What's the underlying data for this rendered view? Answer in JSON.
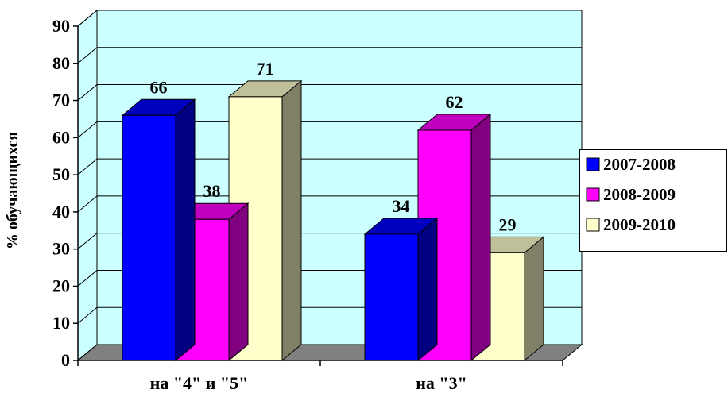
{
  "chart_data": {
    "type": "bar",
    "style": "3d-clustered-column",
    "title": "",
    "xlabel": "",
    "ylabel": "% обучающихся",
    "ylim": [
      0,
      90
    ],
    "y_ticks": [
      0,
      10,
      20,
      30,
      40,
      50,
      60,
      70,
      80,
      90
    ],
    "grid": true,
    "legend_position": "right",
    "categories": [
      "на \"4\" и \"5\"",
      "на \"3\""
    ],
    "series": [
      {
        "name": "2007-2008",
        "values": [
          66,
          34
        ],
        "color": "#0000ff"
      },
      {
        "name": "2008-2009",
        "values": [
          38,
          62
        ],
        "color": "#ff00ff"
      },
      {
        "name": "2009-2010",
        "values": [
          71,
          29
        ],
        "color": "#ffffcc"
      }
    ],
    "colors": {
      "plot_background": "#ccffff",
      "floor": "#808080",
      "gridline": "#000000"
    }
  }
}
